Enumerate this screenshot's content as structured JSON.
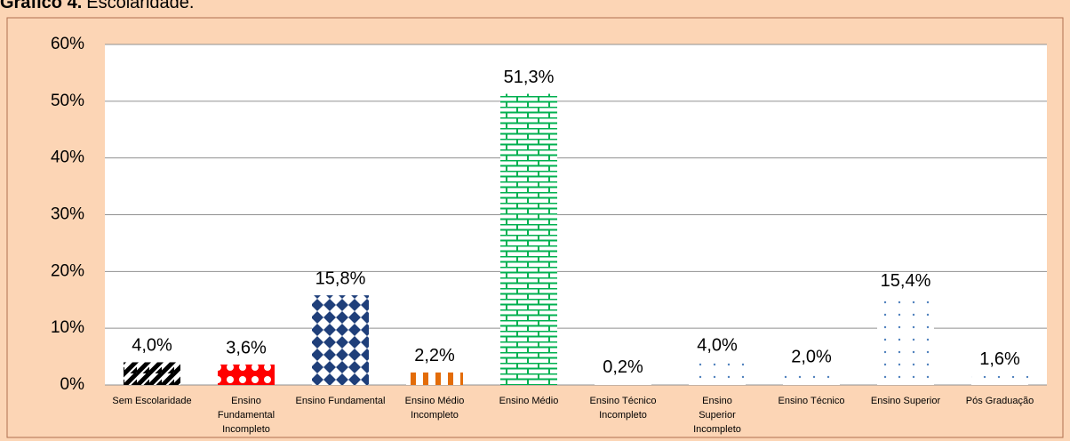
{
  "chart_data": {
    "type": "bar",
    "title_label": "Gráfico 4.",
    "title": "Escolaridade.",
    "categories": [
      "Sem Escolaridade",
      "Ensino Fundamental Incompleto",
      "Ensino Fundamental",
      "Ensino Médio Incompleto",
      "Ensino Médio",
      "Ensino Técnico Incompleto",
      "Ensino Superior Incompleto",
      "Ensino Técnico",
      "Ensino Superior",
      "Pós Graduação"
    ],
    "values": [
      4.0,
      3.6,
      15.8,
      2.2,
      51.3,
      0.2,
      4.0,
      2.0,
      15.4,
      1.6
    ],
    "value_labels": [
      "4,0%",
      "3,6%",
      "15,8%",
      "2,2%",
      "51,3%",
      "0,2%",
      "4,0%",
      "2,0%",
      "15,4%",
      "1,6%"
    ],
    "colors": [
      "#000000",
      "#ff0000",
      "#1f3f7a",
      "#e36c09",
      "#00b050",
      "#4f81bd",
      "#4f81bd",
      "#4f81bd",
      "#4f81bd",
      "#4f81bd"
    ],
    "ylim": [
      0,
      60
    ],
    "yticks": [
      {
        "value": 0,
        "label": "0%"
      },
      {
        "value": 10,
        "label": "10%"
      },
      {
        "value": 20,
        "label": "20%"
      },
      {
        "value": 30,
        "label": "30%"
      },
      {
        "value": 40,
        "label": "40%"
      },
      {
        "value": 50,
        "label": "50%"
      },
      {
        "value": 60,
        "label": "60%"
      }
    ],
    "grid": true
  }
}
